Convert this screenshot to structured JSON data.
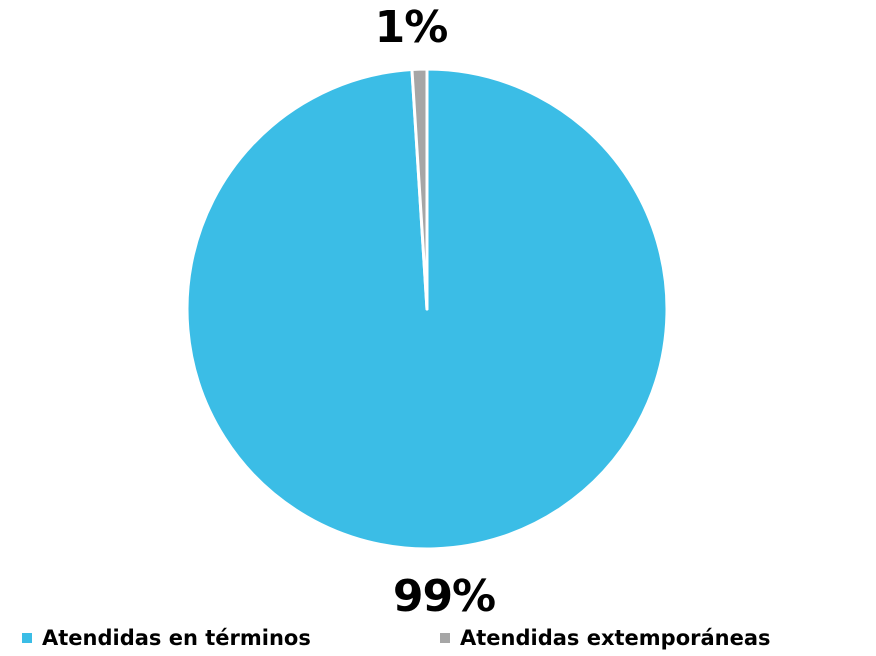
{
  "chart_data": {
    "type": "pie",
    "title": "",
    "series": [
      {
        "name": "Atendidas en términos",
        "value": 99,
        "label": "99%",
        "color": "#3bbde6"
      },
      {
        "name": "Atendidas extemporáneas",
        "value": 1,
        "label": "1%",
        "color": "#a6a6a6"
      }
    ],
    "slice_border_color": "#ffffff",
    "start_angle_deg": -90,
    "direction": "clockwise",
    "legend": {
      "position": "bottom",
      "items": [
        "Atendidas en términos",
        "Atendidas extemporáneas"
      ]
    }
  }
}
